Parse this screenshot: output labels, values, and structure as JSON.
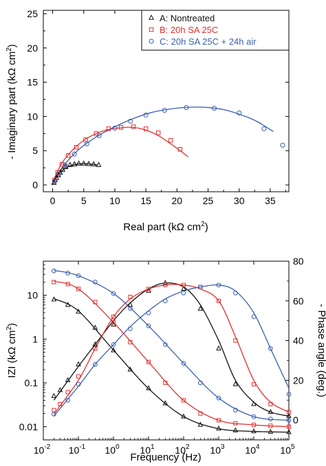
{
  "chart_data": [
    {
      "type": "scatter",
      "panel": "nyquist",
      "xlabel": "Real part (kΩ cm",
      "xlabel_sup": "2",
      "xlabel_end": ")",
      "ylabel": "- Imaginary part (kΩ cm",
      "ylabel_sup": "2",
      "ylabel_end": ")",
      "xlim": [
        -1.5,
        38
      ],
      "ylim": [
        -1,
        25.5
      ],
      "xticks": [
        0,
        5,
        10,
        15,
        20,
        25,
        30,
        35
      ],
      "yticks": [
        0,
        5,
        10,
        15,
        20,
        25
      ],
      "legend_position": "top-right",
      "series": [
        {
          "name": "A: Nontreated",
          "marker": "triangle",
          "color": "#111111",
          "points": [
            [
              0.2,
              0.3
            ],
            [
              0.4,
              0.7
            ],
            [
              0.6,
              1.0
            ],
            [
              0.9,
              1.4
            ],
            [
              1.2,
              1.8
            ],
            [
              1.6,
              2.2
            ],
            [
              2.1,
              2.6
            ],
            [
              2.8,
              2.9
            ],
            [
              3.5,
              3.0
            ],
            [
              4.2,
              3.1
            ],
            [
              5.0,
              3.1
            ],
            [
              5.8,
              3.05
            ],
            [
              6.6,
              3.0
            ],
            [
              7.4,
              2.9
            ]
          ],
          "fit": [
            [
              0,
              0
            ],
            [
              0.3,
              0.6
            ],
            [
              0.7,
              1.2
            ],
            [
              1.2,
              1.8
            ],
            [
              2,
              2.4
            ],
            [
              3,
              2.85
            ],
            [
              4,
              3.05
            ],
            [
              5,
              3.1
            ],
            [
              6,
              3.05
            ],
            [
              7.3,
              2.9
            ]
          ]
        },
        {
          "name": "B: 20h SA 25C",
          "marker": "square",
          "color": "#e03030",
          "points": [
            [
              0.3,
              0.7
            ],
            [
              0.8,
              1.8
            ],
            [
              1.5,
              3.0
            ],
            [
              2.5,
              4.3
            ],
            [
              3.8,
              5.5
            ],
            [
              5.3,
              6.6
            ],
            [
              7.0,
              7.5
            ],
            [
              9.0,
              8.2
            ],
            [
              11.0,
              8.4
            ],
            [
              13.0,
              8.5
            ],
            [
              15.0,
              8.2
            ],
            [
              17.0,
              7.6
            ],
            [
              19.0,
              6.5
            ],
            [
              20.5,
              5.2
            ]
          ],
          "fit": [
            [
              0,
              0
            ],
            [
              0.5,
              1.4
            ],
            [
              1.5,
              3.2
            ],
            [
              3,
              4.9
            ],
            [
              5,
              6.5
            ],
            [
              7,
              7.5
            ],
            [
              9,
              8.1
            ],
            [
              11,
              8.35
            ],
            [
              13,
              8.4
            ],
            [
              15,
              8.0
            ],
            [
              17,
              7.2
            ],
            [
              19,
              6.0
            ],
            [
              20.5,
              5.0
            ],
            [
              21.8,
              4.1
            ]
          ]
        },
        {
          "name": "C: 20h SA 25C + 24h air",
          "marker": "circle",
          "color": "#3a5fb0",
          "points": [
            [
              0.3,
              0.5
            ],
            [
              1.0,
              1.6
            ],
            [
              2.0,
              2.9
            ],
            [
              3.5,
              4.5
            ],
            [
              5.5,
              6.0
            ],
            [
              7.5,
              7.2
            ],
            [
              10.0,
              8.3
            ],
            [
              12.5,
              9.3
            ],
            [
              15.0,
              10.2
            ],
            [
              18.0,
              10.9
            ],
            [
              21.5,
              11.3
            ],
            [
              26.0,
              11.2
            ],
            [
              30.0,
              10.5
            ],
            [
              34.0,
              8.2
            ],
            [
              37.0,
              5.8
            ]
          ],
          "fit": [
            [
              0,
              0
            ],
            [
              1,
              1.8
            ],
            [
              2.5,
              3.6
            ],
            [
              4.5,
              5.4
            ],
            [
              7,
              7.0
            ],
            [
              10,
              8.5
            ],
            [
              13,
              9.7
            ],
            [
              16,
              10.6
            ],
            [
              19,
              11.1
            ],
            [
              22,
              11.35
            ],
            [
              25,
              11.3
            ],
            [
              28,
              10.9
            ],
            [
              31,
              10.0
            ],
            [
              33,
              9.2
            ],
            [
              35.5,
              7.8
            ]
          ]
        }
      ]
    },
    {
      "type": "line",
      "panel": "bode",
      "xlabel": "Frequency (Hz)",
      "ylabel_left": "IZI (kΩ cm",
      "ylabel_left_sup": "2",
      "ylabel_left_end": ")",
      "ylabel_right": "- Phase angle (deg.)",
      "x_scale": "log",
      "xlim": [
        0.01,
        100000
      ],
      "y_left_scale": "log",
      "y_left_lim": [
        0.005,
        60
      ],
      "y_right_lim": [
        -10,
        80
      ],
      "xtick_bases": [
        "10",
        "10",
        "10",
        "10",
        "10",
        "10",
        "10",
        "10"
      ],
      "xtick_exps": [
        "-2",
        "-1",
        "0",
        "1",
        "2",
        "3",
        "4",
        "5"
      ],
      "ytick_left_labels": [
        "0.01",
        "0.1",
        "1",
        "10"
      ],
      "ytick_left_values": [
        0.01,
        0.1,
        1,
        10
      ],
      "ytick_right_labels": [
        "0",
        "20",
        "40",
        "60",
        "80"
      ],
      "ytick_right_values": [
        0,
        20,
        40,
        60,
        80
      ],
      "series": [
        {
          "name": "A: Nontreated",
          "marker": "triangle",
          "color": "#111111",
          "modulus": [
            [
              0.02,
              8.0
            ],
            [
              0.05,
              6.0
            ],
            [
              0.1,
              4.2
            ],
            [
              0.3,
              1.8
            ],
            [
              1,
              0.55
            ],
            [
              3,
              0.2
            ],
            [
              10,
              0.075
            ],
            [
              30,
              0.034
            ],
            [
              100,
              0.017
            ],
            [
              300,
              0.011
            ],
            [
              1000,
              0.009
            ],
            [
              3000,
              0.0082
            ],
            [
              10000,
              0.0078
            ],
            [
              30000,
              0.0076
            ],
            [
              100000,
              0.0075
            ]
          ],
          "modulus_fit": [
            [
              0.02,
              8.4
            ],
            [
              0.1,
              4.4
            ],
            [
              1,
              0.56
            ],
            [
              10,
              0.074
            ],
            [
              100,
              0.017
            ],
            [
              1000,
              0.009
            ],
            [
              10000,
              0.0078
            ],
            [
              100000,
              0.0075
            ]
          ],
          "phase": [
            [
              0.02,
              12
            ],
            [
              0.03,
              15
            ],
            [
              0.05,
              20
            ],
            [
              0.1,
              28
            ],
            [
              0.3,
              38
            ],
            [
              1,
              48
            ],
            [
              3,
              58
            ],
            [
              10,
              65
            ],
            [
              30,
              69
            ],
            [
              100,
              66
            ],
            [
              300,
              56
            ],
            [
              1000,
              36
            ],
            [
              3000,
              18
            ],
            [
              10000,
              8
            ],
            [
              30000,
              4
            ],
            [
              100000,
              2
            ]
          ],
          "phase_fit": [
            [
              0.02,
              10
            ],
            [
              0.1,
              27
            ],
            [
              0.3,
              38
            ],
            [
              1,
              50
            ],
            [
              3,
              59
            ],
            [
              10,
              66
            ],
            [
              30,
              69
            ],
            [
              100,
              67
            ],
            [
              300,
              58
            ],
            [
              1000,
              40
            ],
            [
              3000,
              20
            ],
            [
              10000,
              9
            ],
            [
              30000,
              4
            ],
            [
              100000,
              2
            ]
          ]
        },
        {
          "name": "B: 20h SA 25C",
          "marker": "square",
          "color": "#e03030",
          "modulus": [
            [
              0.02,
              20
            ],
            [
              0.05,
              18
            ],
            [
              0.1,
              14
            ],
            [
              0.3,
              7
            ],
            [
              1,
              2.4
            ],
            [
              3,
              0.85
            ],
            [
              10,
              0.3
            ],
            [
              30,
              0.1
            ],
            [
              100,
              0.04
            ],
            [
              300,
              0.02
            ],
            [
              1000,
              0.014
            ],
            [
              3000,
              0.012
            ],
            [
              10000,
              0.011
            ],
            [
              30000,
              0.0105
            ],
            [
              100000,
              0.01
            ]
          ],
          "modulus_fit": [
            [
              0.02,
              21
            ],
            [
              0.1,
              14
            ],
            [
              1,
              2.4
            ],
            [
              10,
              0.3
            ],
            [
              100,
              0.04
            ],
            [
              1000,
              0.014
            ],
            [
              10000,
              0.011
            ],
            [
              100000,
              0.01
            ]
          ],
          "phase": [
            [
              0.02,
              5
            ],
            [
              0.03,
              8
            ],
            [
              0.05,
              14
            ],
            [
              0.1,
              22
            ],
            [
              0.3,
              36
            ],
            [
              1,
              52
            ],
            [
              3,
              62
            ],
            [
              10,
              66
            ],
            [
              30,
              68
            ],
            [
              100,
              68
            ],
            [
              300,
              67
            ],
            [
              1000,
              60
            ],
            [
              3000,
              40
            ],
            [
              10000,
              18
            ],
            [
              30000,
              8
            ],
            [
              100000,
              4
            ]
          ],
          "phase_fit": [
            [
              0.02,
              3
            ],
            [
              0.1,
              20
            ],
            [
              0.3,
              36
            ],
            [
              1,
              52
            ],
            [
              3,
              61
            ],
            [
              10,
              66
            ],
            [
              30,
              68
            ],
            [
              100,
              68
            ],
            [
              300,
              66
            ],
            [
              1000,
              60
            ],
            [
              3000,
              42
            ],
            [
              10000,
              20
            ],
            [
              30000,
              9
            ],
            [
              100000,
              4
            ]
          ]
        },
        {
          "name": "C: 20h SA 25C + 24h air",
          "marker": "circle",
          "color": "#3a5fb0",
          "modulus": [
            [
              0.02,
              36
            ],
            [
              0.05,
              32
            ],
            [
              0.1,
              28
            ],
            [
              0.3,
              20
            ],
            [
              1,
              11
            ],
            [
              3,
              5
            ],
            [
              10,
              2
            ],
            [
              30,
              0.75
            ],
            [
              100,
              0.28
            ],
            [
              300,
              0.1
            ],
            [
              1000,
              0.045
            ],
            [
              3000,
              0.024
            ],
            [
              10000,
              0.017
            ],
            [
              30000,
              0.015
            ],
            [
              100000,
              0.014
            ]
          ],
          "modulus_fit": [
            [
              0.02,
              37
            ],
            [
              0.1,
              28
            ],
            [
              1,
              11
            ],
            [
              10,
              2
            ],
            [
              100,
              0.28
            ],
            [
              1000,
              0.045
            ],
            [
              10000,
              0.017
            ],
            [
              100000,
              0.014
            ]
          ],
          "phase": [
            [
              0.02,
              3
            ],
            [
              0.05,
              10
            ],
            [
              0.1,
              18
            ],
            [
              0.3,
              28
            ],
            [
              1,
              38
            ],
            [
              3,
              46
            ],
            [
              10,
              54
            ],
            [
              30,
              60
            ],
            [
              100,
              64
            ],
            [
              300,
              67
            ],
            [
              1000,
              68
            ],
            [
              3000,
              64
            ],
            [
              10000,
              52
            ],
            [
              30000,
              36
            ],
            [
              100000,
              13
            ]
          ],
          "phase_fit": [
            [
              0.02,
              2
            ],
            [
              0.1,
              17
            ],
            [
              0.3,
              28
            ],
            [
              1,
              38
            ],
            [
              3,
              47
            ],
            [
              10,
              55
            ],
            [
              30,
              61
            ],
            [
              100,
              65
            ],
            [
              300,
              67
            ],
            [
              1000,
              68
            ],
            [
              3000,
              65
            ],
            [
              10000,
              54
            ],
            [
              30000,
              36
            ],
            [
              100000,
              16
            ]
          ]
        }
      ]
    }
  ]
}
